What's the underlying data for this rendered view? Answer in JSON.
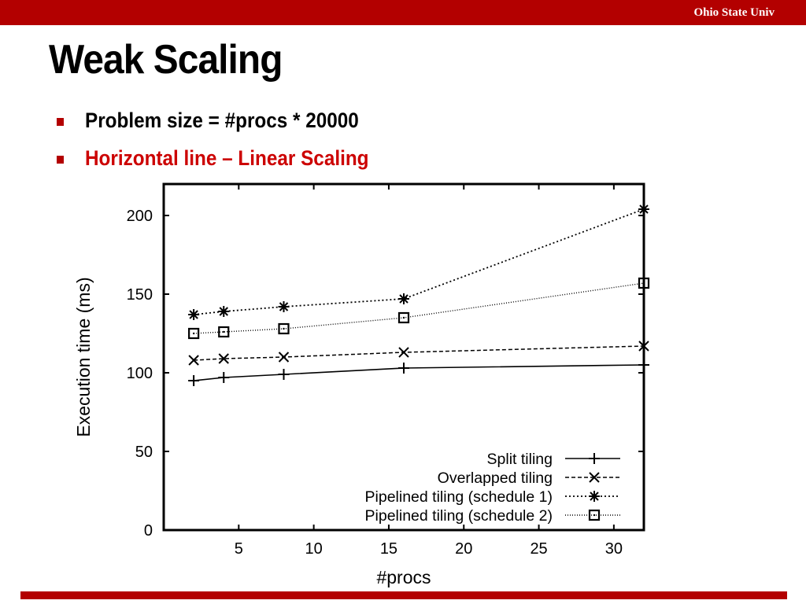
{
  "header": {
    "org": "Ohio State Univ"
  },
  "slide": {
    "title": "Weak Scaling",
    "bullets": [
      {
        "text": "Problem size = #procs * 20000",
        "color": "#000000"
      },
      {
        "text": "Horizontal line – Linear Scaling",
        "color": "#cc0000"
      }
    ]
  },
  "colors": {
    "accent": "#b30000",
    "highlight": "#cc0000"
  },
  "chart_data": {
    "type": "line",
    "title": "",
    "xlabel": "#procs",
    "ylabel": "Execution time (ms)",
    "xlim": [
      0,
      32
    ],
    "ylim": [
      0,
      220
    ],
    "xticks": [
      5,
      10,
      15,
      20,
      25,
      30
    ],
    "yticks": [
      0,
      50,
      100,
      150,
      200
    ],
    "grid": false,
    "legend_position": "bottom-right",
    "x": [
      2,
      4,
      8,
      16,
      32
    ],
    "series": [
      {
        "name": "Split tiling",
        "marker": "plus",
        "dash": "solid",
        "values": [
          95,
          97,
          99,
          103,
          105
        ]
      },
      {
        "name": "Overlapped tiling",
        "marker": "x",
        "dash": "dashed",
        "values": [
          108,
          109,
          110,
          113,
          117
        ]
      },
      {
        "name": "Pipelined tiling (schedule 1)",
        "marker": "star",
        "dash": "dotted",
        "values": [
          137,
          139,
          142,
          147,
          204
        ]
      },
      {
        "name": "Pipelined tiling (schedule 2)",
        "marker": "square",
        "dash": "fine-dotted",
        "values": [
          125,
          126,
          128,
          135,
          157
        ]
      }
    ]
  }
}
